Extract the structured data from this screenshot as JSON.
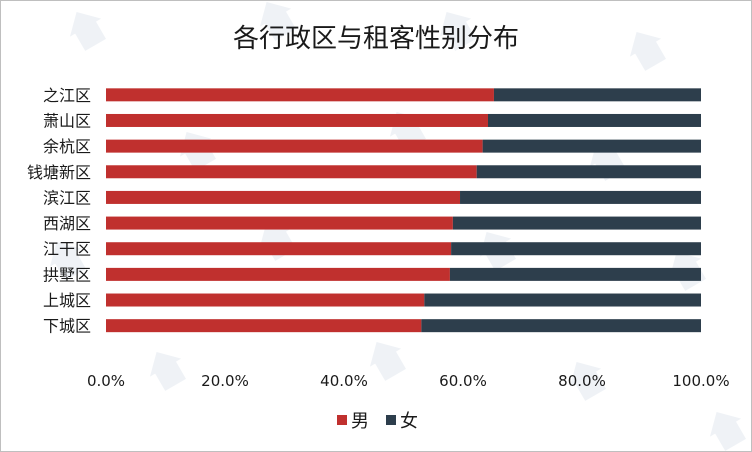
{
  "chart_data": {
    "type": "bar",
    "orientation": "horizontal",
    "stacked": true,
    "normalized": true,
    "title": "各行政区与租客性别分布",
    "categories": [
      "之江区",
      "萧山区",
      "余杭区",
      "钱塘新区",
      "滨江区",
      "西湖区",
      "江干区",
      "拱墅区",
      "上城区",
      "下城区"
    ],
    "series": [
      {
        "name": "男",
        "color": "#c0302e",
        "values": [
          0.652,
          0.642,
          0.633,
          0.623,
          0.595,
          0.583,
          0.58,
          0.578,
          0.535,
          0.53
        ]
      },
      {
        "name": "女",
        "color": "#2d3e4c",
        "values": [
          0.348,
          0.358,
          0.367,
          0.377,
          0.405,
          0.417,
          0.42,
          0.422,
          0.465,
          0.47
        ]
      }
    ],
    "xlim": [
      0,
      1
    ],
    "x_ticks": [
      "0.0%",
      "20.0%",
      "40.0%",
      "60.0%",
      "80.0%",
      "100.0%"
    ],
    "xlabel": "",
    "ylabel": "",
    "grid": false,
    "legend_position": "bottom"
  }
}
